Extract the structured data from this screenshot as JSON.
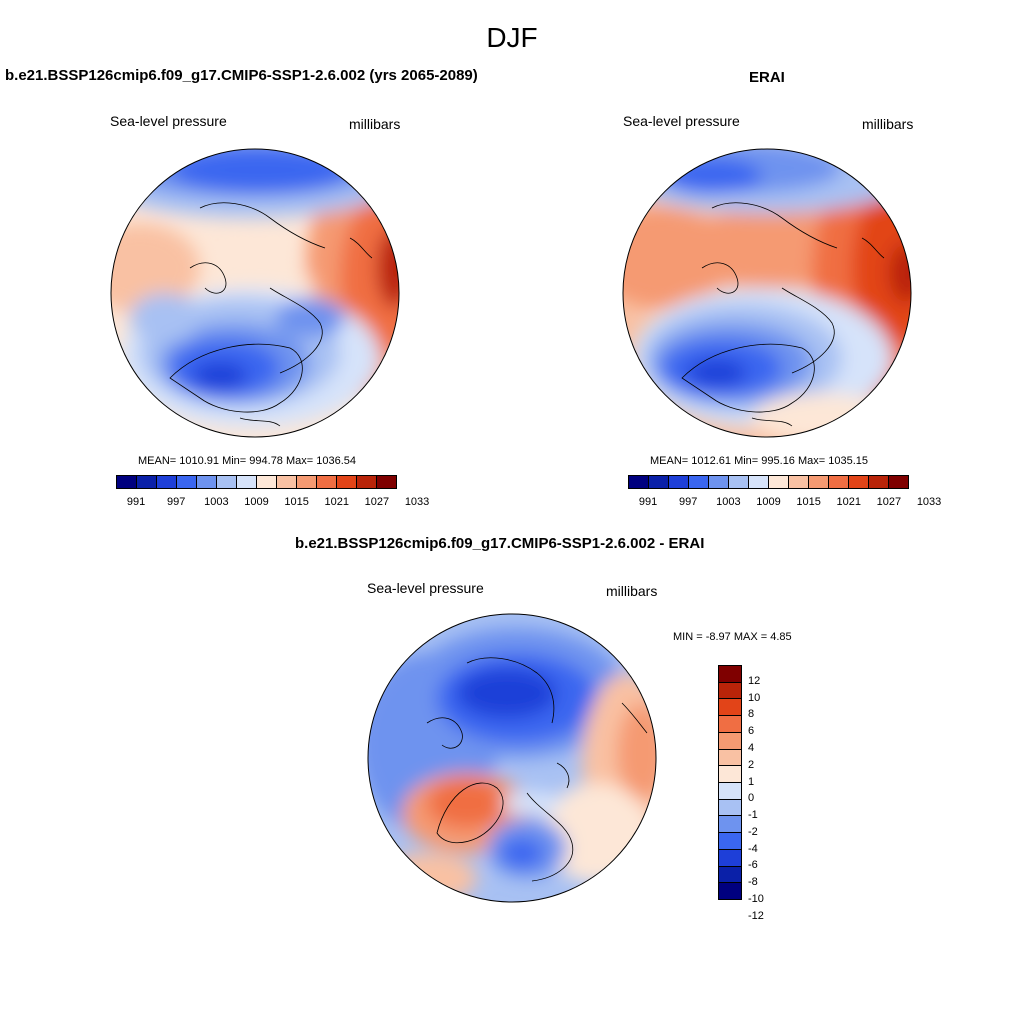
{
  "figure": {
    "season": "DJF"
  },
  "panels": {
    "model": {
      "title": "b.e21.BSSP126cmip6.f09_g17.CMIP6-SSP1-2.6.002 (yrs 2065-2089)",
      "variable": "Sea-level pressure",
      "units": "millibars",
      "stats": "MEAN= 1010.91  Min= 994.78  Max= 1036.54",
      "mean": 1010.91,
      "min": 994.78,
      "max": 1036.54
    },
    "obs": {
      "title": "ERAI",
      "variable": "Sea-level pressure",
      "units": "millibars",
      "stats": "MEAN= 1012.61  Min= 995.16  Max= 1035.15",
      "mean": 1012.61,
      "min": 995.16,
      "max": 1035.15
    },
    "diff": {
      "title": "b.e21.BSSP126cmip6.f09_g17.CMIP6-SSP1-2.6.002 - ERAI",
      "variable": "Sea-level pressure",
      "units": "millibars",
      "stats": "MIN =  -8.97 MAX =   4.85",
      "min": -8.97,
      "max": 4.85
    }
  },
  "colorbars": {
    "pressure": {
      "colors": [
        "#00007f",
        "#0a20a8",
        "#1e3fd8",
        "#3a66f0",
        "#6e93ef",
        "#a8c1f3",
        "#d6e3fa",
        "#fde7d7",
        "#f9c1a3",
        "#f59a72",
        "#f06e43",
        "#e24418",
        "#b92409",
        "#7f0000"
      ],
      "tick_labels": [
        "991",
        "997",
        "1003",
        "1009",
        "1015",
        "1021",
        "1027",
        "1033"
      ]
    },
    "difference": {
      "colors": [
        "#7f0000",
        "#b92409",
        "#e24418",
        "#f06e43",
        "#f59a72",
        "#f9c1a3",
        "#fde7d7",
        "#d6e3fa",
        "#a8c1f3",
        "#6e93ef",
        "#3a66f0",
        "#1e3fd8",
        "#0a20a8",
        "#00007f"
      ],
      "tick_labels": [
        "12",
        "10",
        "8",
        "6",
        "4",
        "2",
        "1",
        "0",
        "-1",
        "-2",
        "-4",
        "-6",
        "-8",
        "-10",
        "-12"
      ]
    }
  }
}
